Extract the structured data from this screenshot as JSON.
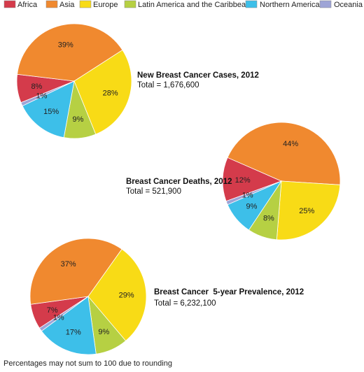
{
  "colors": {
    "Africa": "#d43b4b",
    "Asia": "#f0892f",
    "Europe": "#f8db16",
    "Latin America and the Caribbean": "#b6d043",
    "Northern America": "#3dbfe9",
    "Oceania": "#9ea4d6"
  },
  "legend": [
    {
      "label": "Africa",
      "color": "#d43b4b"
    },
    {
      "label": "Asia",
      "color": "#f0892f"
    },
    {
      "label": "Europe",
      "color": "#f8db16"
    },
    {
      "label": "Latin America and the Caribbean",
      "color": "#b6d043"
    },
    {
      "label": "Northern America",
      "color": "#3dbfe9"
    },
    {
      "label": "Oceania",
      "color": "#9ea4d6"
    }
  ],
  "chart_data": [
    {
      "type": "pie",
      "title": "New Breast Cancer Cases, 2012",
      "total_text": "Total = 1,676,600",
      "slices": [
        {
          "label": "Africa",
          "value": 8,
          "text": "8%"
        },
        {
          "label": "Asia",
          "value": 39,
          "text": "39%"
        },
        {
          "label": "Europe",
          "value": 28,
          "text": "28%"
        },
        {
          "label": "Latin America and the Caribbean",
          "value": 9,
          "text": "9%"
        },
        {
          "label": "Northern America",
          "value": 15,
          "text": "15%"
        },
        {
          "label": "Oceania",
          "value": 1,
          "text": "1%"
        }
      ]
    },
    {
      "type": "pie",
      "title": "Breast Cancer Deaths, 2012",
      "total_text": "Total = 521,900",
      "slices": [
        {
          "label": "Africa",
          "value": 12,
          "text": "12%"
        },
        {
          "label": "Asia",
          "value": 44,
          "text": "44%"
        },
        {
          "label": "Europe",
          "value": 25,
          "text": "25%"
        },
        {
          "label": "Latin America and the Caribbean",
          "value": 8,
          "text": "8%"
        },
        {
          "label": "Northern America",
          "value": 9,
          "text": "9%"
        },
        {
          "label": "Oceania",
          "value": 1,
          "text": "1%"
        }
      ]
    },
    {
      "type": "pie",
      "title": "Breast Cancer  5-year Prevalence, 2012",
      "total_text": "Total = 6,232,100",
      "slices": [
        {
          "label": "Africa",
          "value": 7,
          "text": "7%"
        },
        {
          "label": "Asia",
          "value": 37,
          "text": "37%"
        },
        {
          "label": "Europe",
          "value": 29,
          "text": "29%"
        },
        {
          "label": "Latin America and the Caribbean",
          "value": 9,
          "text": "9%"
        },
        {
          "label": "Northern America",
          "value": 17,
          "text": "17%"
        },
        {
          "label": "Oceania",
          "value": 1,
          "text": "1%"
        }
      ]
    }
  ],
  "footnote": "Percentages may not sum to 100 due to rounding"
}
